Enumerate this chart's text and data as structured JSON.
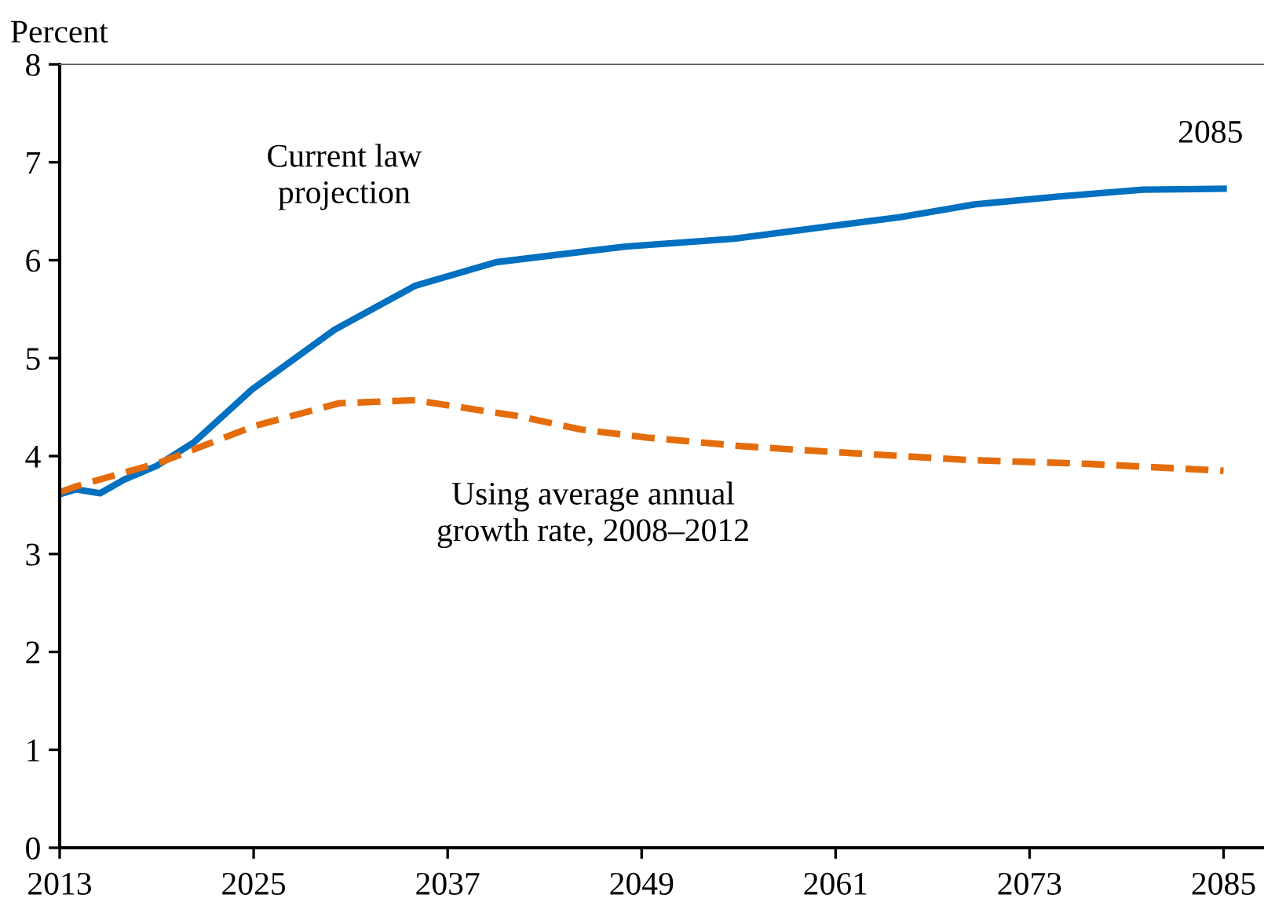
{
  "chart_data": {
    "type": "line",
    "ylabel": "Percent",
    "xlim": [
      2013,
      2087.5
    ],
    "xticks": [
      2013,
      2025,
      2037,
      2049,
      2061,
      2073,
      2085
    ],
    "ylim": [
      0,
      8
    ],
    "yticks": [
      0,
      1,
      2,
      3,
      4,
      5,
      6,
      7,
      8
    ],
    "grid": false,
    "legend": false,
    "series": [
      {
        "name": "Current law\nprojection",
        "color": "#0070c0",
        "line_style": "solid",
        "x": [
          2013,
          2014,
          2015.5,
          2017,
          2019,
          2021.3,
          2024.9,
          2030,
          2035,
          2040,
          2048,
          2054.7,
          2065,
          2069.6,
          2074.8,
          2080,
          2085
        ],
        "values": [
          3.61,
          3.66,
          3.62,
          3.76,
          3.9,
          4.14,
          4.68,
          5.29,
          5.74,
          5.98,
          6.14,
          6.22,
          6.44,
          6.57,
          6.65,
          6.72,
          6.73
        ]
      },
      {
        "name": "Using average annual\ngrowth rate, 2008–2012",
        "color": "#e46c0a",
        "line_style": "dashed",
        "x": [
          2013,
          2014,
          2019.3,
          2025.1,
          2030.3,
          2035,
          2041.3,
          2045.3,
          2049.3,
          2055.3,
          2061,
          2069.2,
          2076.7,
          2085
        ],
        "values": [
          3.63,
          3.69,
          3.94,
          4.31,
          4.54,
          4.57,
          4.41,
          4.27,
          4.19,
          4.1,
          4.04,
          3.96,
          3.92,
          3.85
        ]
      }
    ],
    "annotations": [
      {
        "text": "2085",
        "x": 2085,
        "y": 6.73
      }
    ]
  }
}
